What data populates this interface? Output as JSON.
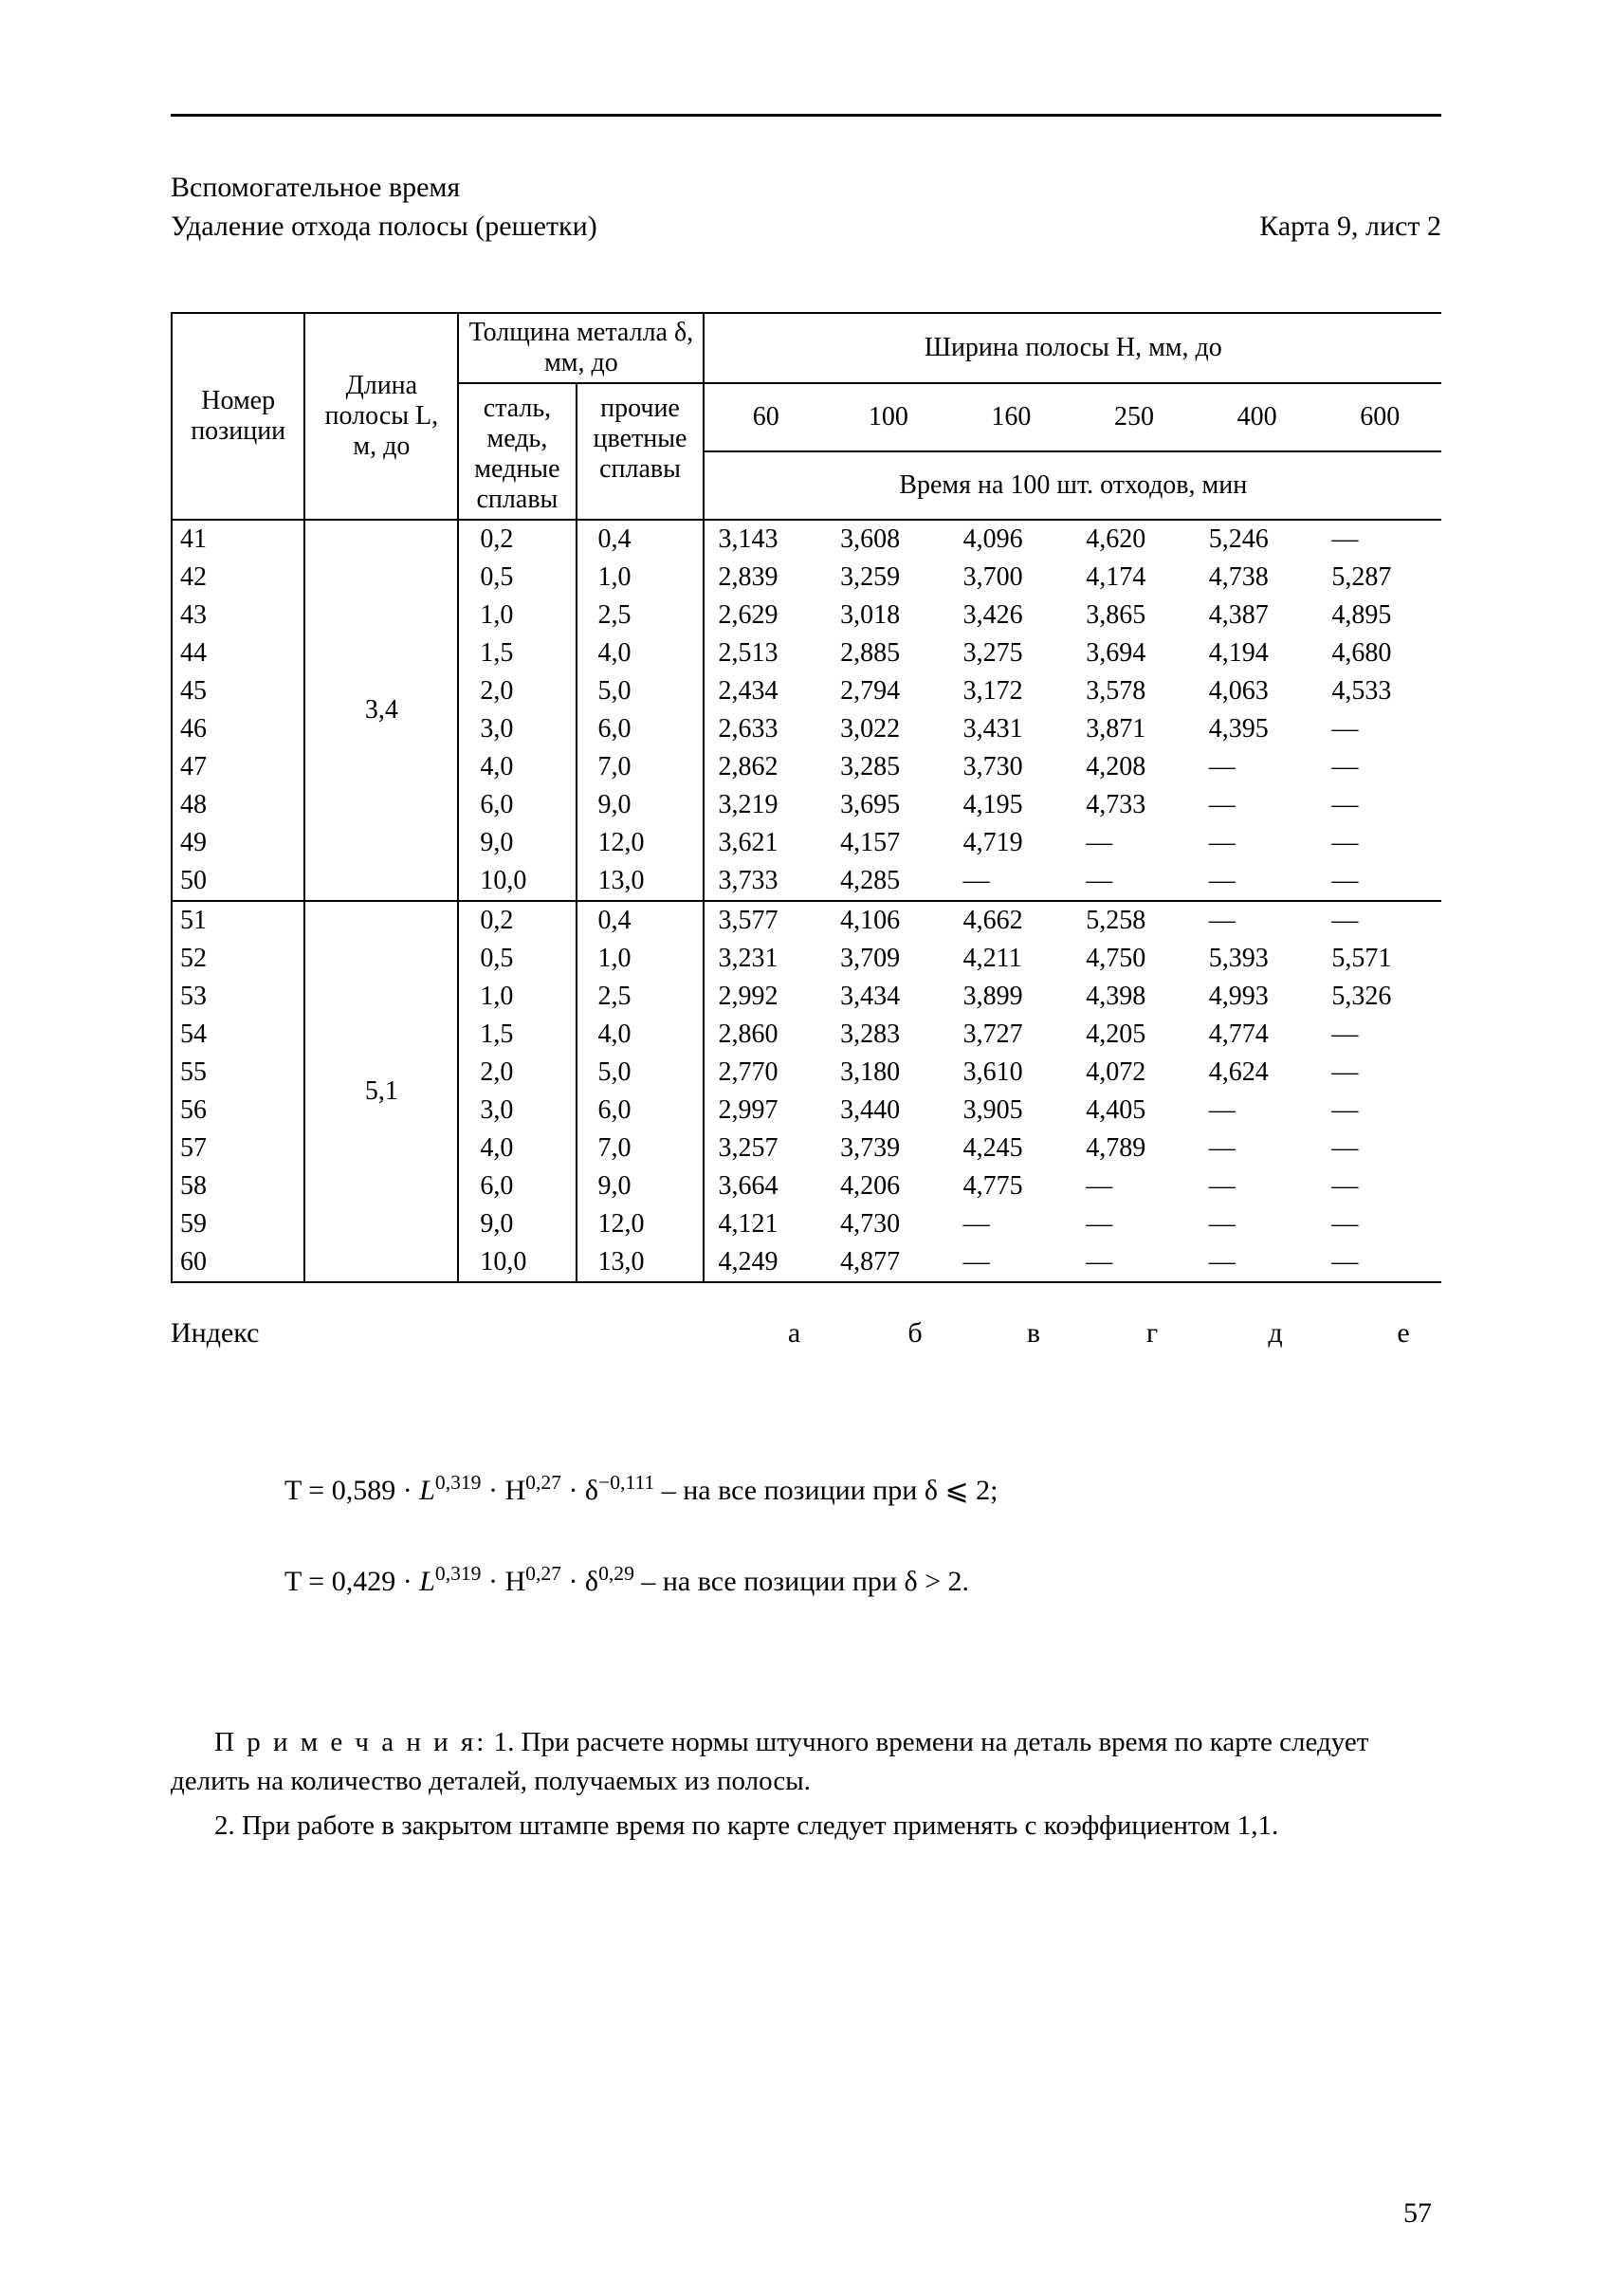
{
  "header": {
    "line1": "Вспомогательное время",
    "line2": "Удаление отхода полосы (решетки)",
    "card_ref": "Карта 9, лист 2"
  },
  "table": {
    "cols": {
      "pos": "Номер позиции",
      "length": "Длина полосы L, м, до",
      "thickness": "Толщина металла δ, мм, до",
      "thk_sub1": "сталь, медь, медные сплавы",
      "thk_sub2": "прочие цветные сплавы",
      "width_header": "Ширина полосы H, мм, до",
      "time_header": "Время на 100 шт. отходов, мин",
      "widths": [
        "60",
        "100",
        "160",
        "250",
        "400",
        "600"
      ]
    },
    "groups": [
      {
        "length": "3,4",
        "rows": [
          {
            "pos": "41",
            "t1": "0,2",
            "t2": "0,4",
            "v": [
              "3,143",
              "3,608",
              "4,096",
              "4,620",
              "5,246",
              "—"
            ]
          },
          {
            "pos": "42",
            "t1": "0,5",
            "t2": "1,0",
            "v": [
              "2,839",
              "3,259",
              "3,700",
              "4,174",
              "4,738",
              "5,287"
            ]
          },
          {
            "pos": "43",
            "t1": "1,0",
            "t2": "2,5",
            "v": [
              "2,629",
              "3,018",
              "3,426",
              "3,865",
              "4,387",
              "4,895"
            ]
          },
          {
            "pos": "44",
            "t1": "1,5",
            "t2": "4,0",
            "v": [
              "2,513",
              "2,885",
              "3,275",
              "3,694",
              "4,194",
              "4,680"
            ]
          },
          {
            "pos": "45",
            "t1": "2,0",
            "t2": "5,0",
            "v": [
              "2,434",
              "2,794",
              "3,172",
              "3,578",
              "4,063",
              "4,533"
            ]
          },
          {
            "pos": "46",
            "t1": "3,0",
            "t2": "6,0",
            "v": [
              "2,633",
              "3,022",
              "3,431",
              "3,871",
              "4,395",
              "—"
            ]
          },
          {
            "pos": "47",
            "t1": "4,0",
            "t2": "7,0",
            "v": [
              "2,862",
              "3,285",
              "3,730",
              "4,208",
              "—",
              "—"
            ]
          },
          {
            "pos": "48",
            "t1": "6,0",
            "t2": "9,0",
            "v": [
              "3,219",
              "3,695",
              "4,195",
              "4,733",
              "—",
              "—"
            ]
          },
          {
            "pos": "49",
            "t1": "9,0",
            "t2": "12,0",
            "v": [
              "3,621",
              "4,157",
              "4,719",
              "—",
              "—",
              "—"
            ]
          },
          {
            "pos": "50",
            "t1": "10,0",
            "t2": "13,0",
            "v": [
              "3,733",
              "4,285",
              "—",
              "—",
              "—",
              "—"
            ]
          }
        ]
      },
      {
        "length": "5,1",
        "rows": [
          {
            "pos": "51",
            "t1": "0,2",
            "t2": "0,4",
            "v": [
              "3,577",
              "4,106",
              "4,662",
              "5,258",
              "—",
              "—"
            ]
          },
          {
            "pos": "52",
            "t1": "0,5",
            "t2": "1,0",
            "v": [
              "3,231",
              "3,709",
              "4,211",
              "4,750",
              "5,393",
              "5,571"
            ]
          },
          {
            "pos": "53",
            "t1": "1,0",
            "t2": "2,5",
            "v": [
              "2,992",
              "3,434",
              "3,899",
              "4,398",
              "4,993",
              "5,326"
            ]
          },
          {
            "pos": "54",
            "t1": "1,5",
            "t2": "4,0",
            "v": [
              "2,860",
              "3,283",
              "3,727",
              "4,205",
              "4,774",
              "—"
            ]
          },
          {
            "pos": "55",
            "t1": "2,0",
            "t2": "5,0",
            "v": [
              "2,770",
              "3,180",
              "3,610",
              "4,072",
              "4,624",
              "—"
            ]
          },
          {
            "pos": "56",
            "t1": "3,0",
            "t2": "6,0",
            "v": [
              "2,997",
              "3,440",
              "3,905",
              "4,405",
              "—",
              "—"
            ]
          },
          {
            "pos": "57",
            "t1": "4,0",
            "t2": "7,0",
            "v": [
              "3,257",
              "3,739",
              "4,245",
              "4,789",
              "—",
              "—"
            ]
          },
          {
            "pos": "58",
            "t1": "6,0",
            "t2": "9,0",
            "v": [
              "3,664",
              "4,206",
              "4,775",
              "—",
              "—",
              "—"
            ]
          },
          {
            "pos": "59",
            "t1": "9,0",
            "t2": "12,0",
            "v": [
              "4,121",
              "4,730",
              "—",
              "—",
              "—",
              "—"
            ]
          },
          {
            "pos": "60",
            "t1": "10,0",
            "t2": "13,0",
            "v": [
              "4,249",
              "4,877",
              "—",
              "—",
              "—",
              "—"
            ]
          }
        ]
      }
    ]
  },
  "index": {
    "label": "Индекс",
    "letters": [
      "а",
      "б",
      "в",
      "г",
      "д",
      "е"
    ]
  },
  "formulas": {
    "f1_pre": "T = 0,589 · ",
    "f1_L_exp": "0,319",
    "f1_H_exp": "0,27",
    "f1_d_exp": "−0,111",
    "f1_post": " – на все позиции при δ ⩽ 2;",
    "f2_pre": "T = 0,429 · ",
    "f2_L_exp": "0,319",
    "f2_H_exp": "0,27",
    "f2_d_exp": "0,29",
    "f2_post": " – на все позиции при δ > 2."
  },
  "notes": {
    "lead": "П р и м е ч а н и я:",
    "n1": " 1. При расчете нормы штучного времени на деталь время по карте следует делить на количество деталей, получаемых из полосы.",
    "n2": "2. При работе в закрытом штампе время по карте следует применять с коэффициентом 1,1."
  },
  "page_number": "57"
}
